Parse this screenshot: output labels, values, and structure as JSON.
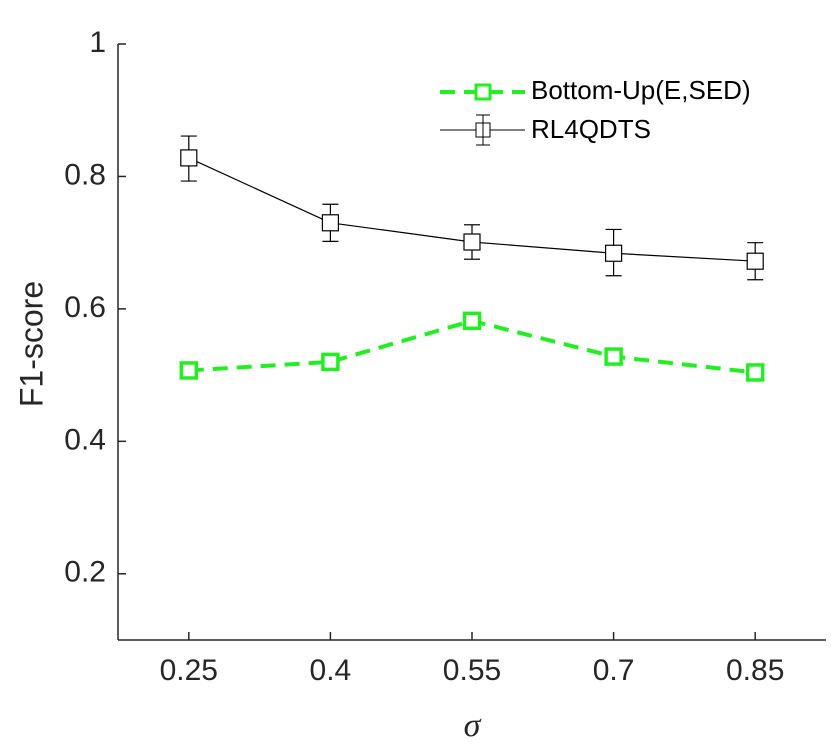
{
  "chart_data": {
    "type": "line",
    "title": "",
    "xlabel": "σ",
    "ylabel": "F1-score",
    "x": [
      0.25,
      0.4,
      0.55,
      0.7,
      0.85
    ],
    "x_tick_labels": [
      "0.25",
      "0.4",
      "0.55",
      "0.7",
      "0.85"
    ],
    "y_tick_labels": [
      "0.2",
      "0.4",
      "0.6",
      "0.8",
      "1"
    ],
    "y_ticks": [
      0.2,
      0.4,
      0.6,
      0.8,
      1.0
    ],
    "xlim": [
      0.175,
      0.925
    ],
    "ylim": [
      0.1,
      1.0
    ],
    "grid": false,
    "legend_position": "top-right",
    "series": [
      {
        "name": "Bottom-Up(E,SED)",
        "color": "#22ee22",
        "line_style": "dashed",
        "marker": "square",
        "values": [
          0.507,
          0.52,
          0.582,
          0.528,
          0.504
        ]
      },
      {
        "name": "RL4QDTS",
        "color": "#000000",
        "line_style": "solid",
        "marker": "square",
        "values": [
          0.828,
          0.73,
          0.701,
          0.684,
          0.672
        ],
        "error_low": [
          0.035,
          0.028,
          0.026,
          0.034,
          0.028
        ],
        "error_high": [
          0.033,
          0.028,
          0.026,
          0.036,
          0.028
        ]
      }
    ]
  }
}
